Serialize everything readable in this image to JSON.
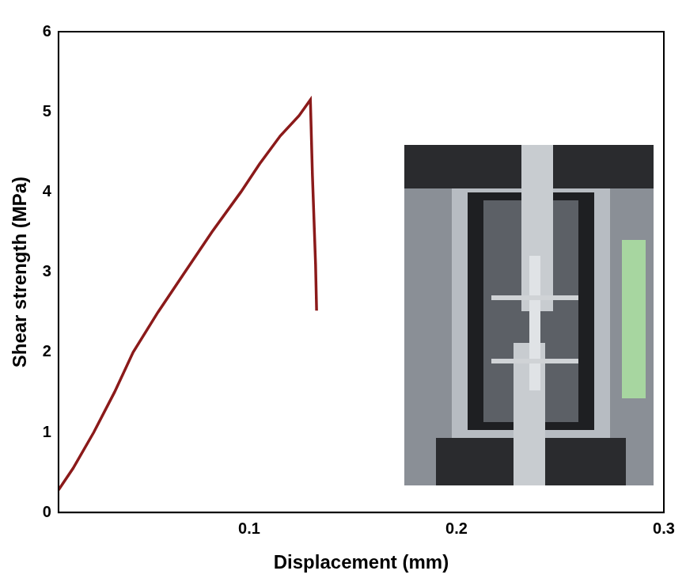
{
  "chart_data": {
    "type": "line",
    "x_label": "Displacement (mm)",
    "y_label": "Shear strength (MPa)",
    "x": [
      0.008,
      0.015,
      0.025,
      0.035,
      0.044,
      0.056,
      0.069,
      0.082,
      0.096,
      0.105,
      0.115,
      0.124,
      0.1295,
      0.1305,
      0.132,
      0.1325
    ],
    "values": [
      0.28,
      0.55,
      1.0,
      1.5,
      2.0,
      2.5,
      3.0,
      3.5,
      4.0,
      4.35,
      4.7,
      4.95,
      5.15,
      4.2,
      3.1,
      2.52
    ],
    "color": "#8b1a1a",
    "xlim": [
      0.008,
      0.3
    ],
    "xticks": [
      0.1,
      0.2,
      0.3
    ],
    "ylim": [
      0,
      6
    ],
    "yticks": [
      0,
      1,
      2,
      3,
      4,
      5,
      6
    ],
    "grid": false
  }
}
